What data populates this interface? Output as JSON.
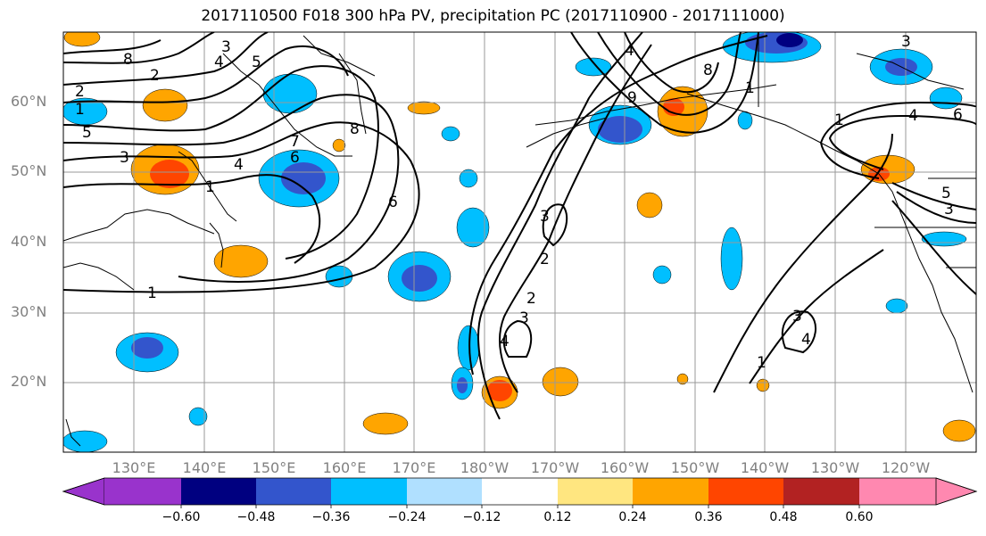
{
  "title": "2017110500 F018 300 hPa PV, precipitation PC (2017110900 - 2017111000)",
  "latitude_labels": [
    "60°N",
    "50°N",
    "40°N",
    "30°N",
    "20°N"
  ],
  "longitude_labels": [
    "130°E",
    "140°E",
    "150°E",
    "160°E",
    "170°E",
    "180°W",
    "170°W",
    "160°W",
    "150°W",
    "140°W",
    "130°W",
    "120°W"
  ],
  "colorbar": {
    "colors": [
      "#9933cc",
      "#000080",
      "#3355cc",
      "#00bfff",
      "#b0e0ff",
      "#ffffff",
      "#ffe680",
      "#ffa500",
      "#ff4500",
      "#b22222",
      "#ff88b0"
    ],
    "tick_labels": [
      "−0.60",
      "−0.48",
      "−0.36",
      "−0.24",
      "−0.12",
      "0.12",
      "0.24",
      "0.36",
      "0.48",
      "0.60"
    ]
  },
  "contour_labels": [
    "8",
    "3",
    "4",
    "5",
    "2",
    "1",
    "5",
    "3",
    "4",
    "1",
    "6",
    "7",
    "8",
    "6",
    "2",
    "3",
    "8",
    "9",
    "4",
    "1",
    "2",
    "3",
    "2",
    "4",
    "3",
    "1",
    "4",
    "6",
    "3",
    "5",
    "3",
    "1",
    "4",
    "1"
  ]
}
